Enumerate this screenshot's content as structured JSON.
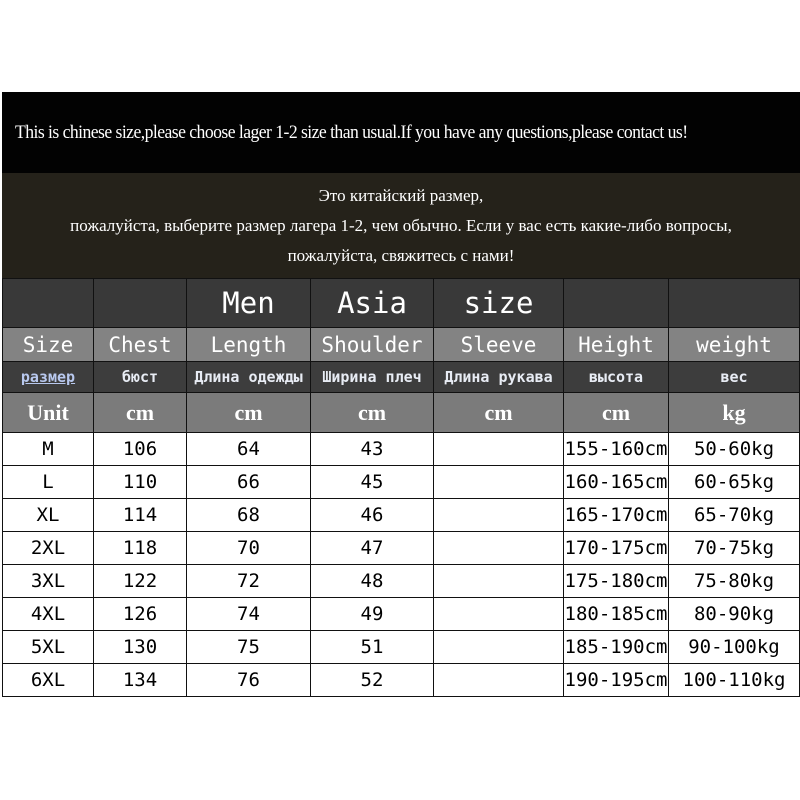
{
  "notice_en": "This is  chinese size,please choose lager 1-2 size than usual.If you have any questions,please contact us!",
  "notice_ru": [
    "Это китайский размер,",
    "пожалуйста, выберите размер лагера 1-2, чем обычно. Если у вас есть какие-либо вопросы,",
    "пожалуйста, свяжитесь с нами!"
  ],
  "title_row": [
    "",
    "",
    "Men",
    "Asia",
    "size",
    "",
    ""
  ],
  "headers_en": [
    "Size",
    "Chest",
    "Length",
    "Shoulder",
    "Sleeve",
    "Height",
    "weight"
  ],
  "headers_ru": [
    "размер",
    "бюст",
    "Длина одежды",
    "Ширина плеч",
    "Длина рукава",
    "высота",
    "вес"
  ],
  "units": [
    "Unit",
    "cm",
    "cm",
    "cm",
    "cm",
    "cm",
    "kg"
  ],
  "rows": [
    [
      "M",
      "106",
      "64",
      "43",
      "",
      "155-160cm",
      "50-60kg"
    ],
    [
      "L",
      "110",
      "66",
      "45",
      "",
      "160-165cm",
      "60-65kg"
    ],
    [
      "XL",
      "114",
      "68",
      "46",
      "",
      "165-170cm",
      "65-70kg"
    ],
    [
      "2XL",
      "118",
      "70",
      "47",
      "",
      "170-175cm",
      "70-75kg"
    ],
    [
      "3XL",
      "122",
      "72",
      "48",
      "",
      "175-180cm",
      "75-80kg"
    ],
    [
      "4XL",
      "126",
      "74",
      "49",
      "",
      "180-185cm",
      "80-90kg"
    ],
    [
      "5XL",
      "130",
      "75",
      "51",
      "",
      "185-190cm",
      "90-100kg"
    ],
    [
      "6XL",
      "134",
      "76",
      "52",
      "",
      "190-195cm",
      "100-110kg"
    ]
  ]
}
